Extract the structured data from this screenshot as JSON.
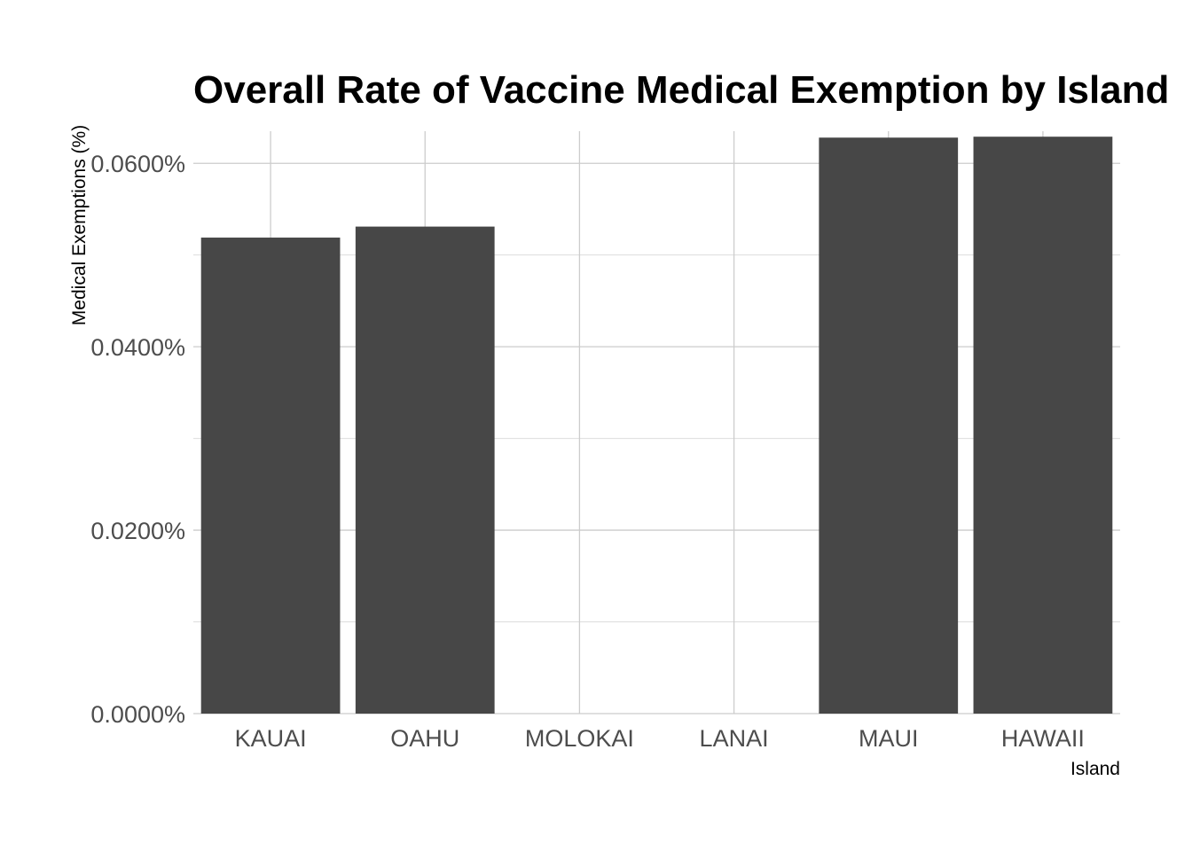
{
  "chart_data": {
    "type": "bar",
    "title": "Overall Rate of Vaccine Medical Exemption by Island",
    "xlabel": "Island",
    "ylabel": "Medical Exemptions (%)",
    "categories": [
      "KAUAI",
      "OAHU",
      "MOLOKAI",
      "LANAI",
      "MAUI",
      "HAWAII"
    ],
    "values": [
      0.0519,
      0.0531,
      0.0,
      0.0,
      0.0628,
      0.0629
    ],
    "ylim": [
      0,
      0.0635
    ],
    "yticks": [
      0.0,
      0.02,
      0.04,
      0.06
    ],
    "ytick_labels": [
      "0.0000%",
      "0.0200%",
      "0.0400%",
      "0.0600%"
    ],
    "grid": true,
    "bar_color": "#474747"
  }
}
